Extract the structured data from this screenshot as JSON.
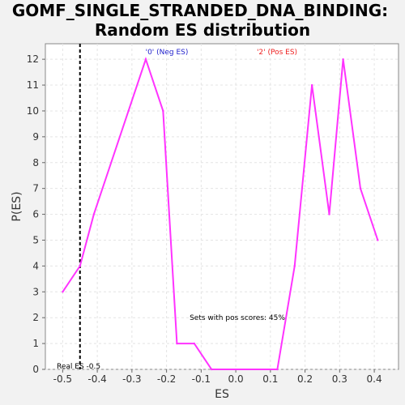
{
  "chart_data": {
    "type": "line",
    "title_line1": "GOMF_SINGLE_STRANDED_DNA_BINDING:",
    "title_line2": "Random ES distribution",
    "xlabel": "ES",
    "ylabel": "P(ES)",
    "xlim": [
      -0.55,
      0.47
    ],
    "ylim": [
      0,
      12.6
    ],
    "x_ticks": [
      -0.5,
      -0.4,
      -0.3,
      -0.2,
      -0.1,
      0.0,
      0.1,
      0.2,
      0.3,
      0.4
    ],
    "x_tick_labels": [
      "-0.5",
      "-0.4",
      "-0.3",
      "-0.2",
      "-0.1",
      "0.0",
      "0.1",
      "0.2",
      "0.3",
      "0.4"
    ],
    "y_ticks": [
      0,
      1,
      2,
      3,
      4,
      5,
      6,
      7,
      8,
      9,
      10,
      11,
      12
    ],
    "y_tick_labels": [
      "0",
      "1",
      "2",
      "3",
      "4",
      "5",
      "6",
      "7",
      "8",
      "9",
      "10",
      "11",
      "12"
    ],
    "grid": true,
    "series": [
      {
        "name": "Random ES",
        "color": "#ff33ff",
        "x": [
          -0.5,
          -0.45,
          -0.41,
          -0.31,
          -0.26,
          -0.21,
          -0.17,
          -0.12,
          -0.07,
          0.12,
          0.17,
          0.22,
          0.27,
          0.31,
          0.36,
          0.41
        ],
        "y": [
          3,
          4,
          6,
          10,
          12,
          10,
          1,
          1,
          0,
          0,
          4,
          11,
          6,
          12,
          7,
          5
        ]
      }
    ],
    "real_es": {
      "value": -0.45,
      "label": "Real ES -0.5",
      "color": "#000000"
    },
    "annotations": {
      "neg_label": "'0' (Neg ES)",
      "neg_color": "#2222cc",
      "pos_label": "'2' (Pos ES)",
      "pos_color": "#ee2222",
      "pos_scores_text": "Sets with pos scores: 45%"
    }
  }
}
